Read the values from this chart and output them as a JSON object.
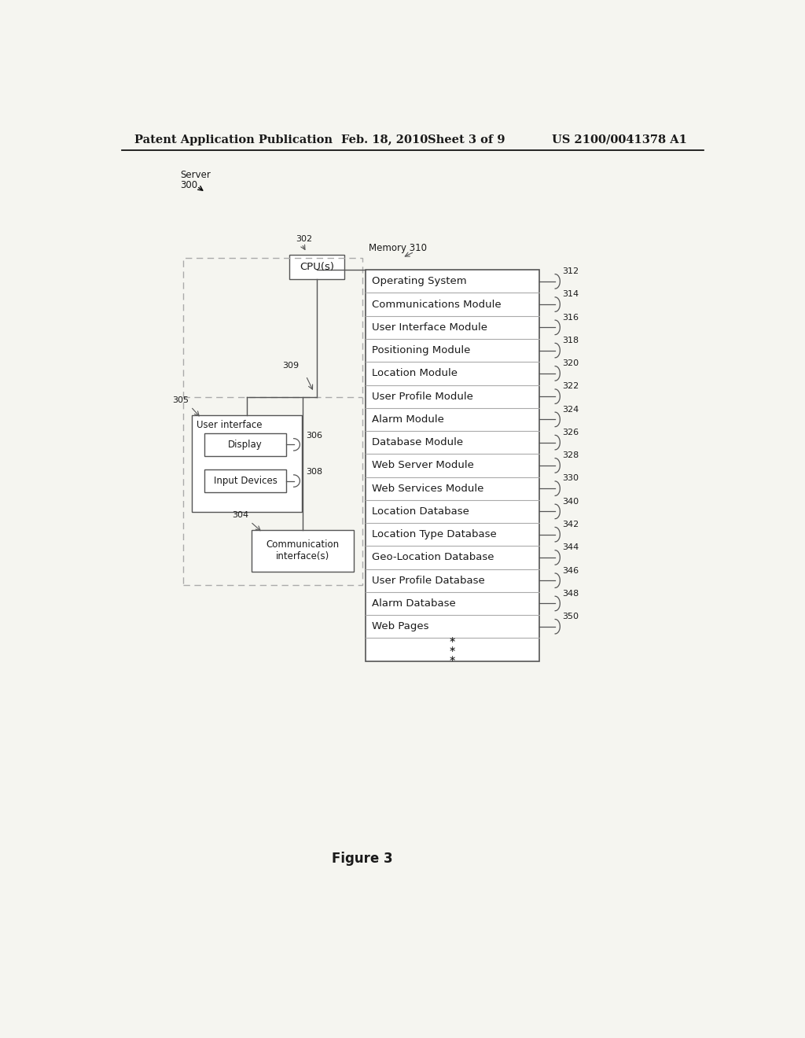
{
  "bg_color": "#f5f5f0",
  "header_text": "Patent Application Publication",
  "header_date": "Feb. 18, 2010",
  "header_sheet": "Sheet 3 of 9",
  "header_patent": "US 2100/0041378 A1",
  "figure_label": "Figure 3",
  "server_label": "Server",
  "server_num": "300",
  "cpu_label": "CPU(s)",
  "cpu_ref": "302",
  "bus_ref": "309",
  "memory_label": "Memory 310",
  "ui_box_label": "User interface",
  "display_label": "Display",
  "display_ref": "306",
  "input_label": "Input Devices",
  "input_ref": "308",
  "ui_ref": "305",
  "comm_label": "Communication\ninterface(s)",
  "comm_ref": "304",
  "memory_rows": [
    {
      "label": "Operating System",
      "ref": "312"
    },
    {
      "label": "Communications Module",
      "ref": "314"
    },
    {
      "label": "User Interface Module",
      "ref": "316"
    },
    {
      "label": "Positioning Module",
      "ref": "318"
    },
    {
      "label": "Location Module",
      "ref": "320"
    },
    {
      "label": "User Profile Module",
      "ref": "322"
    },
    {
      "label": "Alarm Module",
      "ref": "324"
    },
    {
      "label": "Database Module",
      "ref": "326"
    },
    {
      "label": "Web Server Module",
      "ref": "328"
    },
    {
      "label": "Web Services Module",
      "ref": "330"
    },
    {
      "label": "Location Database",
      "ref": "340"
    },
    {
      "label": "Location Type Database",
      "ref": "342"
    },
    {
      "label": "Geo-Location Database",
      "ref": "344"
    },
    {
      "label": "User Profile Database",
      "ref": "346"
    },
    {
      "label": "Alarm Database",
      "ref": "348"
    },
    {
      "label": "Web Pages",
      "ref": "350"
    },
    {
      "label": "* * *",
      "ref": ""
    }
  ],
  "line_color": "#aaaaaa",
  "dark_line": "#555555",
  "text_color": "#1a1a1a",
  "box_fill": "#ffffff",
  "font_size_header": 10.5,
  "font_size_body": 9.5,
  "font_size_small": 8.5,
  "font_size_ref": 8.0,
  "font_size_figure": 12
}
